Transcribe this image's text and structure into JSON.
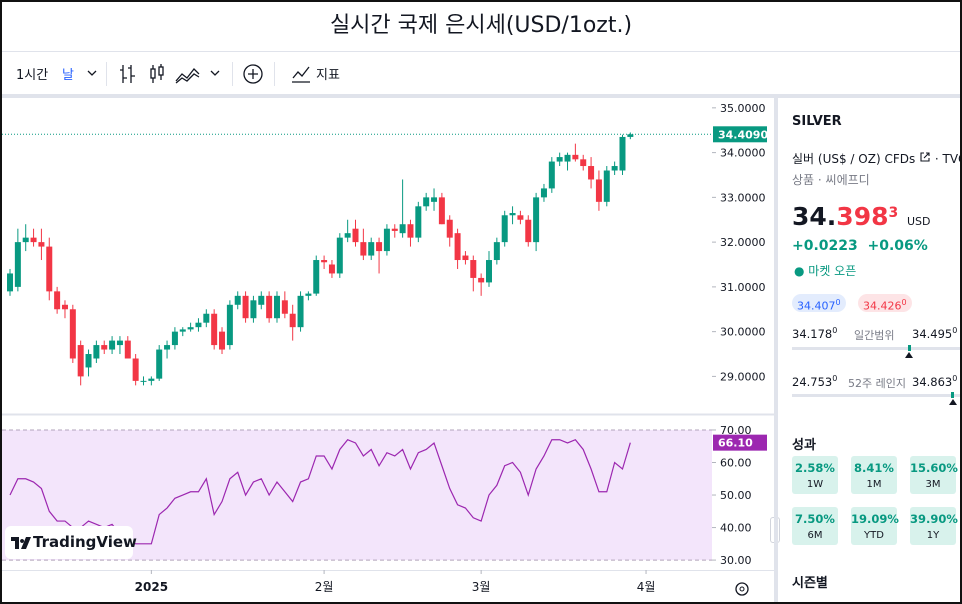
{
  "header": {
    "title": "실시간 국제 은시세(USD/1ozt.)"
  },
  "toolbar": {
    "interval": "1시간",
    "period": "날",
    "indicators": "지표"
  },
  "chart_data": [
    {
      "type": "candlestick",
      "up_color": "#089981",
      "down_color": "#f23645",
      "open": [
        30.9,
        31.0,
        32.0,
        32.1,
        32.0,
        31.9,
        30.9,
        30.6,
        30.5,
        29.7,
        29.2,
        29.4,
        29.7,
        29.6,
        29.7,
        29.8,
        29.4,
        28.9,
        28.9,
        28.95,
        29.6,
        29.7,
        30.0,
        30.05,
        30.1,
        30.2,
        30.4,
        30.0,
        29.7,
        30.6,
        30.8,
        30.3,
        30.6,
        30.8,
        30.3,
        30.7,
        30.4,
        30.1,
        30.8,
        30.85,
        31.6,
        31.5,
        31.3,
        32.1,
        32.3,
        32.0,
        31.7,
        32.0,
        31.8,
        32.3,
        32.2,
        32.4,
        32.1,
        32.8,
        32.9,
        33.0,
        32.5,
        32.2,
        31.7,
        31.6,
        31.2,
        31.1,
        31.6,
        32.0,
        32.6,
        32.6,
        32.5,
        32.0,
        33.0,
        33.2,
        33.8,
        33.8,
        33.95,
        33.85,
        33.7,
        33.4,
        32.9,
        33.6,
        33.6,
        34.35
      ],
      "high": [
        31.4,
        32.3,
        32.4,
        32.3,
        32.3,
        32.1,
        31.0,
        30.7,
        30.6,
        29.8,
        29.6,
        29.8,
        29.8,
        29.9,
        29.9,
        29.9,
        29.5,
        29.0,
        29.0,
        29.7,
        29.8,
        30.1,
        30.1,
        30.2,
        30.3,
        30.5,
        30.5,
        30.1,
        30.7,
        30.9,
        30.9,
        30.8,
        30.9,
        30.9,
        30.9,
        30.9,
        30.6,
        30.9,
        30.9,
        31.7,
        31.7,
        31.6,
        32.2,
        32.5,
        32.5,
        32.3,
        32.1,
        32.1,
        32.4,
        32.4,
        33.4,
        32.5,
        32.9,
        33.1,
        33.2,
        33.1,
        32.6,
        32.3,
        31.8,
        31.7,
        31.3,
        31.8,
        32.1,
        32.7,
        32.8,
        32.7,
        32.6,
        33.1,
        33.3,
        33.9,
        34.0,
        34.0,
        34.2,
        33.95,
        33.9,
        33.6,
        33.7,
        33.8,
        34.4,
        34.45
      ],
      "low": [
        30.8,
        30.9,
        31.8,
        31.9,
        31.6,
        30.7,
        30.4,
        30.3,
        29.3,
        28.8,
        29.0,
        29.3,
        29.5,
        29.5,
        29.5,
        29.4,
        28.8,
        28.8,
        28.8,
        28.9,
        29.4,
        29.6,
        29.9,
        30.0,
        30.0,
        30.1,
        29.6,
        29.5,
        29.6,
        30.5,
        30.2,
        30.2,
        30.5,
        30.2,
        30.2,
        30.3,
        29.8,
        30.0,
        30.7,
        30.8,
        31.4,
        31.2,
        31.2,
        32.0,
        31.9,
        31.6,
        31.6,
        31.3,
        31.7,
        32.1,
        32.1,
        31.9,
        32.0,
        32.7,
        32.7,
        32.4,
        31.9,
        31.4,
        31.5,
        30.9,
        30.8,
        31.0,
        31.5,
        31.9,
        32.4,
        32.4,
        31.9,
        31.8,
        32.9,
        33.1,
        33.7,
        33.6,
        33.8,
        33.6,
        33.2,
        32.7,
        32.8,
        33.5,
        33.5,
        34.3
      ],
      "close": [
        31.3,
        32.0,
        32.1,
        32.0,
        31.9,
        30.9,
        30.5,
        30.5,
        29.4,
        29.0,
        29.5,
        29.7,
        29.6,
        29.8,
        29.8,
        29.4,
        28.9,
        28.9,
        28.95,
        29.6,
        29.7,
        30.0,
        30.05,
        30.1,
        30.2,
        30.4,
        29.7,
        29.6,
        30.6,
        30.8,
        30.3,
        30.7,
        30.8,
        30.3,
        30.8,
        30.4,
        30.1,
        30.8,
        30.85,
        31.6,
        31.55,
        31.3,
        32.1,
        32.2,
        32.0,
        31.7,
        32.0,
        31.8,
        32.3,
        32.25,
        32.4,
        32.1,
        32.8,
        33.0,
        33.0,
        32.4,
        32.1,
        31.6,
        31.6,
        31.2,
        31.1,
        31.6,
        32.0,
        32.6,
        32.65,
        32.5,
        32.0,
        33.0,
        33.2,
        33.8,
        33.9,
        33.95,
        33.85,
        33.7,
        33.4,
        32.9,
        33.6,
        33.7,
        34.35,
        34.409
      ],
      "xlim": [
        -1.02,
        89.4
      ],
      "xticks": [
        {
          "value": 18,
          "label": "2025"
        },
        {
          "value": 40,
          "label": "2월"
        },
        {
          "value": 60,
          "label": "3월"
        },
        {
          "value": 81,
          "label": "4월"
        }
      ],
      "ylim": [
        28.16,
        35.22
      ],
      "yticks": [
        {
          "value": 29,
          "label": "29.0000"
        },
        {
          "value": 30,
          "label": "30.0000"
        },
        {
          "value": 31,
          "label": "31.0000"
        },
        {
          "value": 32,
          "label": "32.0000"
        },
        {
          "value": 33,
          "label": "33.0000"
        },
        {
          "value": 34,
          "label": "34.0000"
        },
        {
          "value": 35,
          "label": "35.0000"
        }
      ],
      "last_value": {
        "value": 34.409,
        "label": "34.4090"
      },
      "grid": false
    },
    {
      "type": "line",
      "color": "#9c27b0",
      "band_color": "#f3e5fb",
      "values": [
        50,
        55,
        55,
        54,
        52,
        45,
        42,
        42,
        40,
        40,
        42,
        41,
        40,
        41,
        38,
        36,
        35,
        35,
        35,
        44,
        46,
        49,
        50,
        51,
        51,
        55,
        44,
        48,
        55,
        57,
        50,
        54,
        55,
        50,
        54,
        51,
        48,
        54,
        55,
        62,
        62,
        58,
        64,
        67,
        66,
        62,
        64,
        59,
        63,
        62,
        64,
        58,
        63,
        64,
        66,
        59,
        52,
        47,
        46,
        43,
        42,
        50,
        53,
        59,
        60,
        57,
        50,
        58,
        62,
        67,
        67,
        66,
        67,
        64,
        58,
        51,
        51,
        60,
        58,
        66.1
      ],
      "xlim": [
        -1.02,
        89.4
      ],
      "ylim": [
        28.8,
        74.6
      ],
      "yticks": [
        {
          "value": 30,
          "label": "30.00"
        },
        {
          "value": 40,
          "label": "40.00"
        },
        {
          "value": 50,
          "label": "50.00"
        },
        {
          "value": 60,
          "label": "60.00"
        },
        {
          "value": 70,
          "label": "70.00"
        }
      ],
      "band": [
        30,
        70
      ],
      "last_value": {
        "value": 66.1,
        "label": "66.10"
      },
      "grid": false
    }
  ],
  "logo": "TradingView",
  "side": {
    "symbol": "SILVER",
    "name": "실버 (US$ / OZ) CFDs",
    "exchange": "· TVC",
    "category": "상품 · 씨에프디",
    "price_parts": [
      "34.",
      "398",
      "3"
    ],
    "currency": "USD",
    "change": "+0.0223",
    "change_pct": "+0.06%",
    "status": "● 마켓 오픈",
    "bid": [
      "34.407",
      "0"
    ],
    "ask": [
      "34.426",
      "0"
    ],
    "day_range": {
      "low": [
        "34.178",
        "0"
      ],
      "label": "일간범위",
      "high": [
        "34.495",
        "0"
      ]
    },
    "year_range": {
      "low": [
        "24.753",
        "0"
      ],
      "label": "52주 레인지",
      "high": [
        "34.863",
        "0"
      ]
    },
    "performance_title": "성과",
    "performance": [
      {
        "value": "2.58%",
        "period": "1W"
      },
      {
        "value": "8.41%",
        "period": "1M"
      },
      {
        "value": "15.60%",
        "period": "3M"
      },
      {
        "value": "7.50%",
        "period": "6M"
      },
      {
        "value": "19.09%",
        "period": "YTD"
      },
      {
        "value": "39.90%",
        "period": "1Y"
      }
    ],
    "seasonal_title": "시즌별"
  }
}
